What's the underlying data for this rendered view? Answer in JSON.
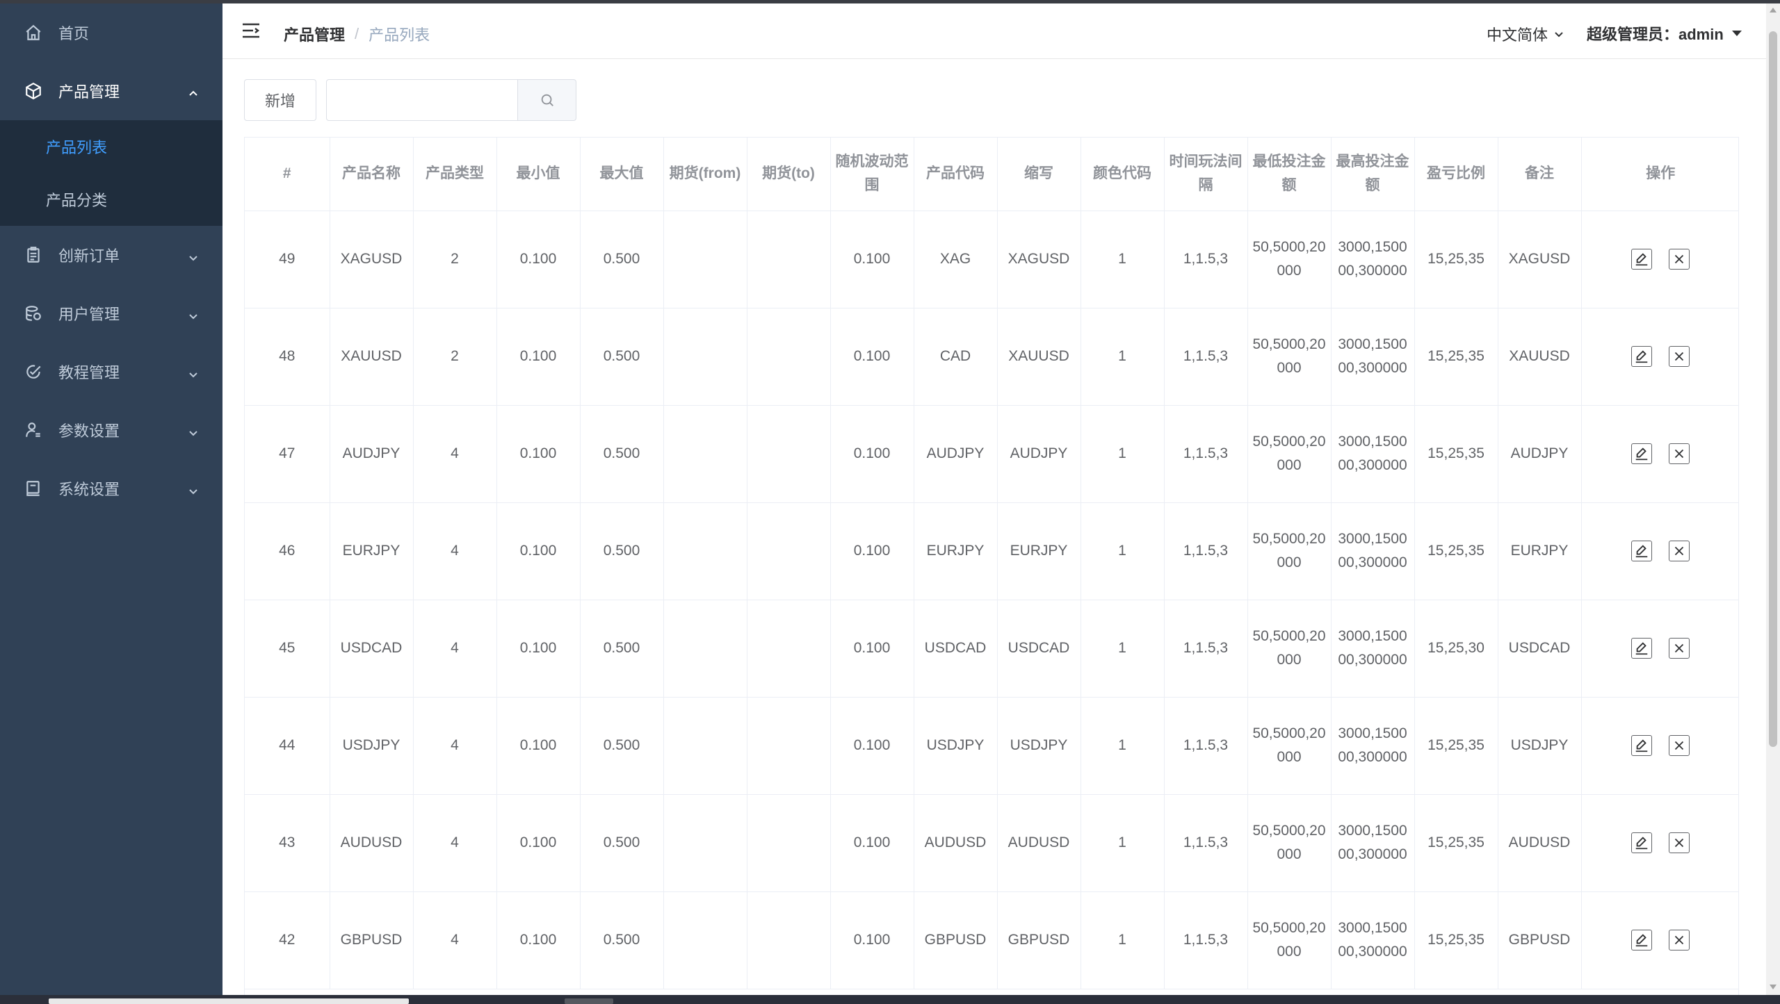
{
  "sidebar": {
    "items": [
      {
        "label": "首页",
        "icon": "home-icon"
      },
      {
        "label": "产品管理",
        "icon": "box-icon",
        "expanded": true,
        "children": [
          {
            "label": "产品列表",
            "active": true
          },
          {
            "label": "产品分类",
            "active": false
          }
        ]
      },
      {
        "label": "创新订单",
        "icon": "order-icon"
      },
      {
        "label": "用户管理",
        "icon": "users-icon"
      },
      {
        "label": "教程管理",
        "icon": "tutorial-icon"
      },
      {
        "label": "参数设置",
        "icon": "user-settings-icon"
      },
      {
        "label": "系统设置",
        "icon": "system-icon"
      }
    ]
  },
  "header": {
    "breadcrumb": {
      "parent": "产品管理",
      "sep": "/",
      "current": "产品列表"
    },
    "language": "中文简体",
    "user": "超级管理员：admin"
  },
  "toolbar": {
    "add_label": "新增",
    "search_value": "",
    "search_placeholder": ""
  },
  "table": {
    "columns": [
      "#",
      "产品名称",
      "产品类型",
      "最小值",
      "最大值",
      "期货(from)",
      "期货(to)",
      "随机波动范围",
      "产品代码",
      "缩写",
      "颜色代码",
      "时间玩法间隔",
      "最低投注金额",
      "最高投注金额",
      "盈亏比例",
      "备注",
      "操作"
    ],
    "rows": [
      [
        "49",
        "XAGUSD",
        "2",
        "0.100",
        "0.500",
        "",
        "",
        "0.100",
        "XAG",
        "XAGUSD",
        "1",
        "1,1.5,3",
        "50,5000,20000",
        "3000,150000,300000",
        "15,25,35",
        "XAGUSD"
      ],
      [
        "48",
        "XAUUSD",
        "2",
        "0.100",
        "0.500",
        "",
        "",
        "0.100",
        "CAD",
        "XAUUSD",
        "1",
        "1,1.5,3",
        "50,5000,20000",
        "3000,150000,300000",
        "15,25,35",
        "XAUUSD"
      ],
      [
        "47",
        "AUDJPY",
        "4",
        "0.100",
        "0.500",
        "",
        "",
        "0.100",
        "AUDJPY",
        "AUDJPY",
        "1",
        "1,1.5,3",
        "50,5000,20000",
        "3000,150000,300000",
        "15,25,35",
        "AUDJPY"
      ],
      [
        "46",
        "EURJPY",
        "4",
        "0.100",
        "0.500",
        "",
        "",
        "0.100",
        "EURJPY",
        "EURJPY",
        "1",
        "1,1.5,3",
        "50,5000,20000",
        "3000,150000,300000",
        "15,25,35",
        "EURJPY"
      ],
      [
        "45",
        "USDCAD",
        "4",
        "0.100",
        "0.500",
        "",
        "",
        "0.100",
        "USDCAD",
        "USDCAD",
        "1",
        "1,1.5,3",
        "50,5000,20000",
        "3000,150000,300000",
        "15,25,30",
        "USDCAD"
      ],
      [
        "44",
        "USDJPY",
        "4",
        "0.100",
        "0.500",
        "",
        "",
        "0.100",
        "USDJPY",
        "USDJPY",
        "1",
        "1,1.5,3",
        "50,5000,20000",
        "3000,150000,300000",
        "15,25,35",
        "USDJPY"
      ],
      [
        "43",
        "AUDUSD",
        "4",
        "0.100",
        "0.500",
        "",
        "",
        "0.100",
        "AUDUSD",
        "AUDUSD",
        "1",
        "1,1.5,3",
        "50,5000,20000",
        "3000,150000,300000",
        "15,25,35",
        "AUDUSD"
      ],
      [
        "42",
        "GBPUSD",
        "4",
        "0.100",
        "0.500",
        "",
        "",
        "0.100",
        "GBPUSD",
        "GBPUSD",
        "1",
        "1,1.5,3",
        "50,5000,20000",
        "3000,150000,300000",
        "15,25,35",
        "GBPUSD"
      ]
    ],
    "row_actions": {
      "edit_icon": "edit-icon",
      "delete_icon": "close-icon"
    }
  },
  "colors": {
    "sidebar_bg": "#304156",
    "submenu_bg": "#1f2d3d",
    "active_link": "#409eff",
    "header_text": "#909399",
    "cell_text": "#606266"
  }
}
